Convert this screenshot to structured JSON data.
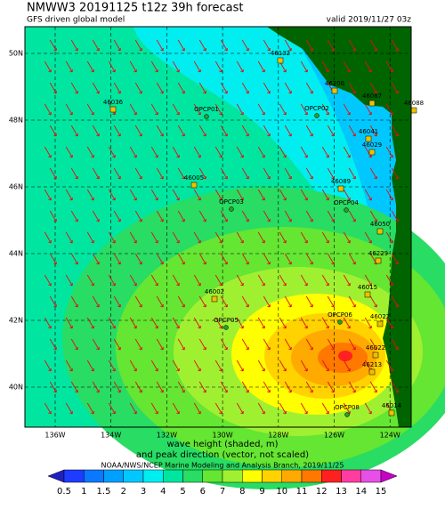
{
  "title": "NMWW3 20191125 t12z    39h forecast",
  "subtitle": "GFS driven global model",
  "valid": "valid 2019/11/27 03z",
  "lon_labels": [
    "136W",
    "134W",
    "132W",
    "130W",
    "128W",
    "126W",
    "124W"
  ],
  "lat_labels": [
    "50N",
    "48N",
    "46N",
    "44N",
    "42N",
    "40N"
  ],
  "stations": [
    "46036",
    "OPCP01",
    "46132",
    "46206",
    "46087",
    "46088",
    "OPCP02",
    "46041",
    "46029",
    "46089",
    "46005",
    "OPCP03",
    "OPCP04",
    "46050",
    "46229",
    "46002",
    "46015",
    "OPCP05",
    "OPCP06",
    "46027",
    "46022",
    "46213",
    "46014",
    "OPCP08"
  ],
  "caption1": "wave height (shaded, m)",
  "caption2": "and peak direction (vector, not scaled)",
  "credit": "NOAA/NWS/NCEP Marine Modeling and Analysis Branch, 2019/11/25",
  "colorbar": {
    "ticks": [
      0.5,
      1,
      1.5,
      2,
      3,
      4,
      5,
      6,
      7,
      8,
      9,
      10,
      11,
      12,
      13,
      14,
      15
    ],
    "colors": [
      "#2020c0",
      "#1e3cff",
      "#0a78ff",
      "#00a0ff",
      "#00c8ff",
      "#00eef0",
      "#00e6a0",
      "#28dc64",
      "#64e632",
      "#a0f032",
      "#ffff00",
      "#ffd200",
      "#ffaa00",
      "#ff7800",
      "#ff2020",
      "#ff3ca0",
      "#e650e6",
      "#c800c8"
    ]
  }
}
